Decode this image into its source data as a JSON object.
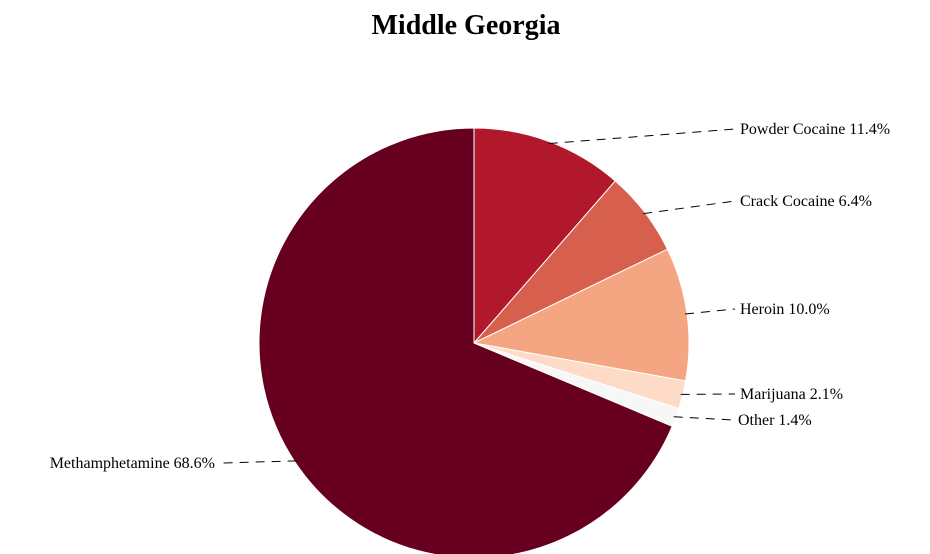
{
  "chart_data": {
    "type": "pie",
    "title": "Middle Georgia",
    "slices": [
      {
        "label": "Powder Cocaine 11.4%",
        "name": "Powder Cocaine",
        "value": 11.4,
        "color": "#b2182b"
      },
      {
        "label": "Crack Cocaine 6.4%",
        "name": "Crack Cocaine",
        "value": 6.4,
        "color": "#d6604d"
      },
      {
        "label": "Heroin 10.0%",
        "name": "Heroin",
        "value": 10.0,
        "color": "#f4a582"
      },
      {
        "label": "Marijuana 2.1%",
        "name": "Marijuana",
        "value": 2.1,
        "color": "#fddbc7"
      },
      {
        "label": "Other 1.4%",
        "name": "Other",
        "value": 1.4,
        "color": "#f7f7f7"
      },
      {
        "label": "Methamphetamine 68.6%",
        "name": "Methamphetamine",
        "value": 68.6,
        "color": "#67001f"
      }
    ],
    "start": "12 o'clock",
    "direction": "clockwise"
  }
}
